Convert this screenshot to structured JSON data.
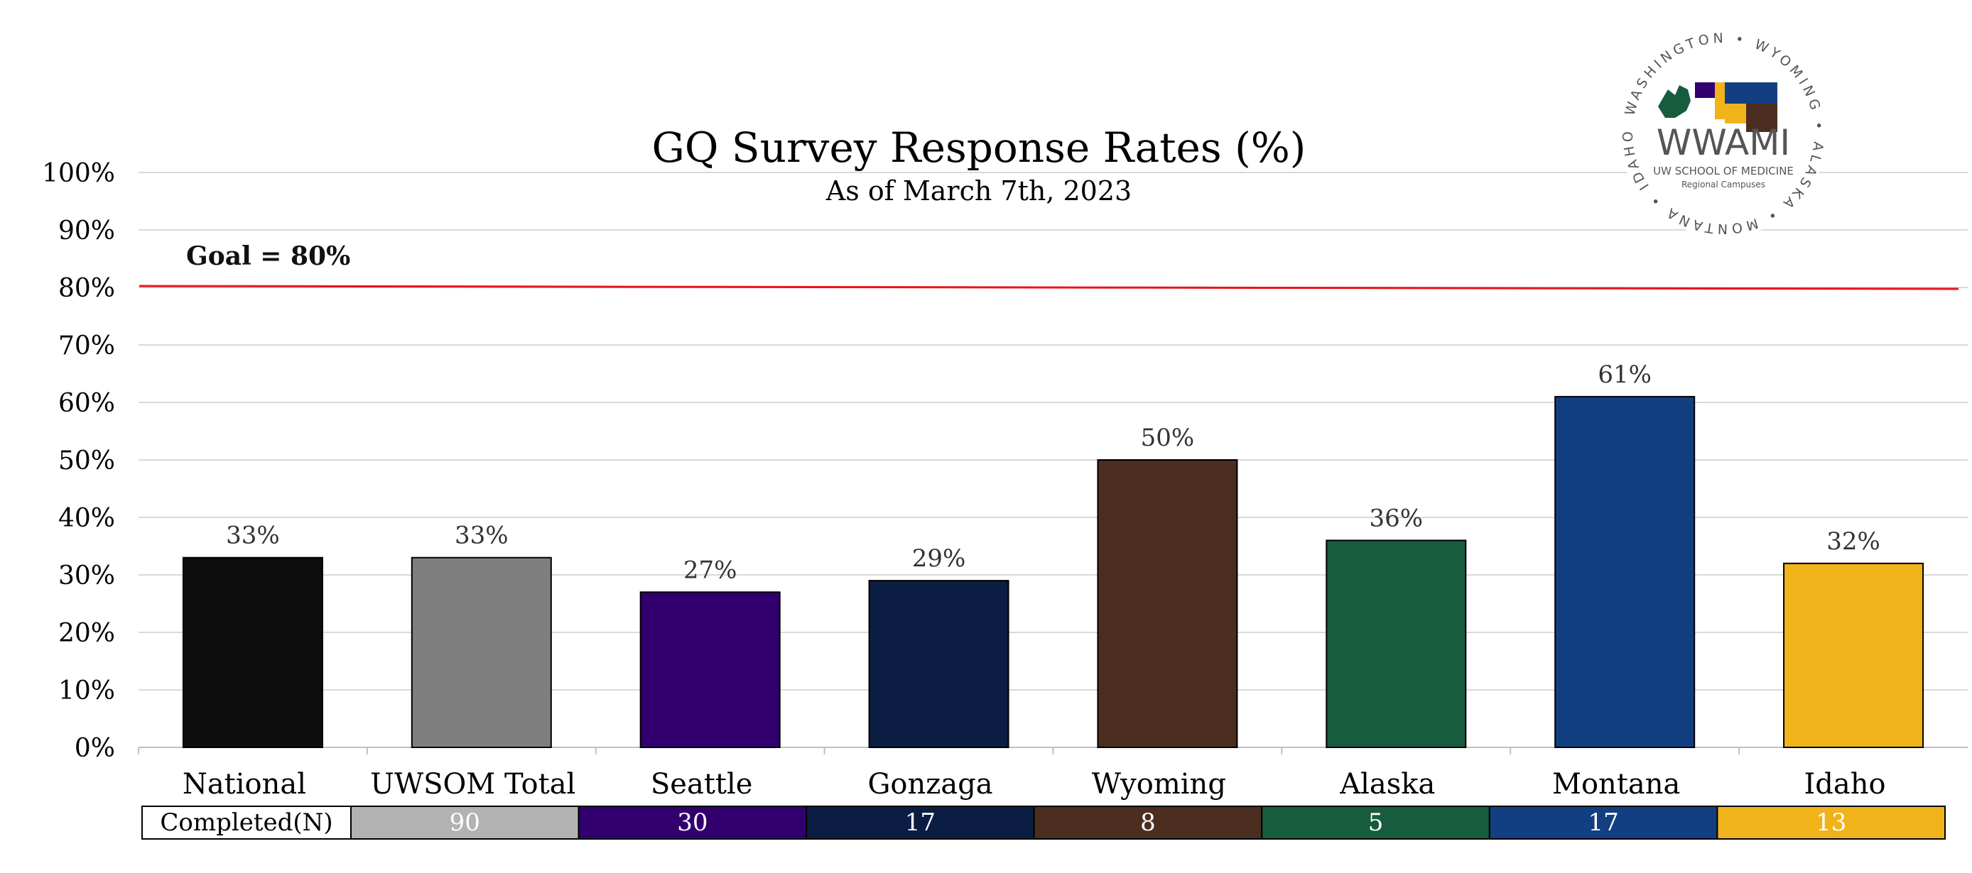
{
  "chart_data": {
    "type": "bar",
    "title": "GQ Survey Response Rates (%)",
    "subtitle": "As of March 7th, 2023",
    "categories": [
      "National",
      "UWSOM Total",
      "Seattle",
      "Gonzaga",
      "Wyoming",
      "Alaska",
      "Montana",
      "Idaho"
    ],
    "values": [
      33,
      33,
      27,
      29,
      50,
      36,
      61,
      32
    ],
    "data_labels": [
      "33%",
      "33%",
      "27%",
      "29%",
      "50%",
      "36%",
      "61%",
      "32%"
    ],
    "colors": [
      "#0d0d0d",
      "#7f7f7f",
      "#32006e",
      "#0b1d43",
      "#4b2e20",
      "#175c3e",
      "#123f82",
      "#f0b31a"
    ],
    "ylim": [
      0,
      100
    ],
    "yticks": [
      "0%",
      "10%",
      "20%",
      "30%",
      "40%",
      "50%",
      "60%",
      "70%",
      "80%",
      "90%",
      "100%"
    ],
    "grid": true,
    "goal": {
      "value": 80,
      "label": "Goal = 80%",
      "color": "#e8141b"
    }
  },
  "table": {
    "header": "Completed(N)",
    "values": [
      "90",
      "30",
      "17",
      "8",
      "5",
      "17",
      "13"
    ],
    "colors": [
      "#b2b2b2",
      "#32006e",
      "#0b1d43",
      "#4b2e20",
      "#175c3e",
      "#123f82",
      "#f0b31a"
    ]
  },
  "logo": {
    "ring_text": "WASHINGTON • WYOMING • ALASKA • MONTANA • IDAHO •",
    "name": "WWAMI",
    "line1": "UW SCHOOL OF MEDICINE",
    "line2": "Regional Campuses"
  }
}
